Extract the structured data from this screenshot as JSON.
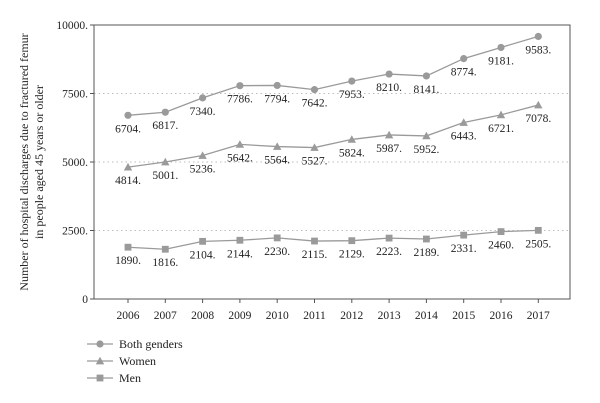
{
  "chart_data": {
    "type": "line",
    "ylabel_lines": [
      "Number of hospital discharges due to fractured femur",
      "in people aged 45 years or older"
    ],
    "xlabel": "",
    "ylim": [
      0,
      10000
    ],
    "yticks": [
      0,
      2500,
      5000,
      7500,
      10000
    ],
    "ytick_labels": [
      "0",
      "2500.",
      "5000.",
      "7500.",
      "10000."
    ],
    "grid": "horizontal-dotted",
    "legend_position": "bottom-left",
    "categories": [
      "2006",
      "2007",
      "2008",
      "2009",
      "2010",
      "2011",
      "2012",
      "2013",
      "2014",
      "2015",
      "2016",
      "2017"
    ],
    "series": [
      {
        "name": "Both genders",
        "marker": "circle",
        "values": [
          6704,
          6817,
          7340,
          7786,
          7794,
          7642,
          7953,
          8210,
          8141,
          8774,
          9181,
          9583
        ],
        "labels": [
          "6704.",
          "6817.",
          "7340.",
          "7786.",
          "7794.",
          "7642.",
          "7953.",
          "8210.",
          "8141.",
          "8774.",
          "9181.",
          "9583."
        ]
      },
      {
        "name": "Women",
        "marker": "triangle",
        "values": [
          4814,
          5001,
          5236,
          5642,
          5564,
          5527,
          5824,
          5987,
          5952,
          6443,
          6721,
          7078
        ],
        "labels": [
          "4814.",
          "5001.",
          "5236.",
          "5642.",
          "5564.",
          "5527.",
          "5824.",
          "5987.",
          "5952.",
          "6443.",
          "6721.",
          "7078."
        ]
      },
      {
        "name": "Men",
        "marker": "square",
        "values": [
          1890,
          1816,
          2104,
          2144,
          2230,
          2115,
          2129,
          2223,
          2189,
          2331,
          2460,
          2505
        ],
        "labels": [
          "1890.",
          "1816.",
          "2104.",
          "2144.",
          "2230.",
          "2115.",
          "2129.",
          "2223.",
          "2189.",
          "2331.",
          "2460.",
          "2505."
        ]
      }
    ],
    "colors": {
      "line": "#9a9a9a",
      "marker": "#9a9a9a",
      "axis": "#555555",
      "grid": "#bdbdbd"
    }
  }
}
